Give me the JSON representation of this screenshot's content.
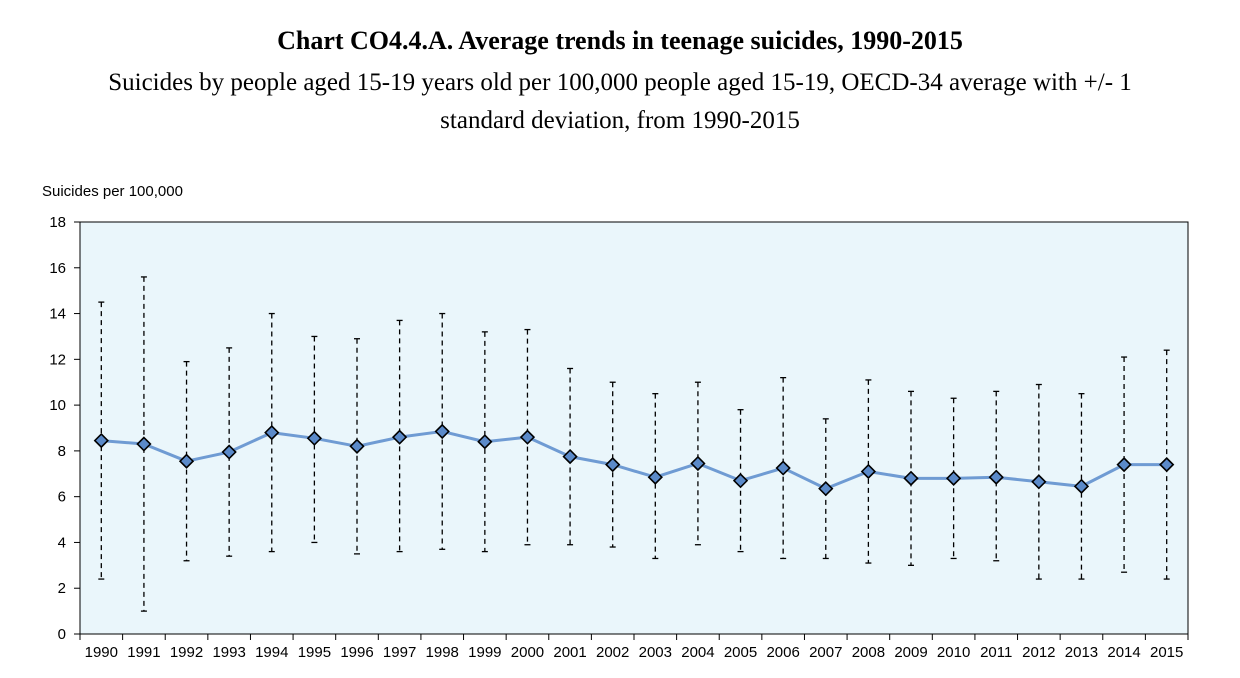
{
  "header": {
    "title": "Chart CO4.4.A. Average trends in teenage suicides, 1990-2015",
    "subtitle_line1": "Suicides by people aged 15-19 years old per 100,000 people aged 15-19, OECD-34 average with +/- 1",
    "subtitle_line2": "standard deviation, from 1990-2015"
  },
  "colors": {
    "plot_background": "#eaf6fb",
    "line": "#6f9bd3",
    "marker_fill": "#5b8ac9",
    "marker_stroke": "#000000",
    "error_bar": "#000000",
    "axis": "#000000"
  },
  "chart_data": {
    "type": "line",
    "title": "Chart CO4.4.A. Average trends in teenage suicides, 1990-2015",
    "ylabel": "Suicides per 100,000",
    "xlabel": "",
    "ylim": [
      0,
      18
    ],
    "yticks": [
      0,
      2,
      4,
      6,
      8,
      10,
      12,
      14,
      16,
      18
    ],
    "grid": false,
    "categories": [
      "1990",
      "1991",
      "1992",
      "1993",
      "1994",
      "1995",
      "1996",
      "1997",
      "1998",
      "1999",
      "2000",
      "2001",
      "2002",
      "2003",
      "2004",
      "2005",
      "2006",
      "2007",
      "2008",
      "2009",
      "2010",
      "2011",
      "2012",
      "2013",
      "2014",
      "2015"
    ],
    "series": [
      {
        "name": "OECD-34 average",
        "values": [
          8.45,
          8.3,
          7.55,
          7.95,
          8.8,
          8.55,
          8.2,
          8.6,
          8.85,
          8.4,
          8.6,
          7.75,
          7.4,
          6.85,
          7.45,
          6.7,
          7.25,
          6.35,
          7.1,
          6.8,
          6.8,
          6.85,
          6.65,
          6.45,
          7.4,
          7.4
        ]
      }
    ],
    "error_bars": {
      "name": "+/- 1 standard deviation",
      "upper": [
        14.5,
        15.6,
        11.9,
        12.5,
        14.0,
        13.0,
        12.9,
        13.7,
        14.0,
        13.2,
        13.3,
        11.6,
        11.0,
        10.5,
        11.0,
        9.8,
        11.2,
        9.4,
        11.1,
        10.6,
        10.3,
        10.6,
        10.9,
        10.5,
        12.1,
        12.4
      ],
      "lower": [
        2.4,
        1.0,
        3.2,
        3.4,
        3.6,
        4.0,
        3.5,
        3.6,
        3.7,
        3.6,
        3.9,
        3.9,
        3.8,
        3.3,
        3.9,
        3.6,
        3.3,
        3.3,
        3.1,
        3.0,
        3.3,
        3.2,
        2.4,
        2.4,
        2.7,
        2.4
      ]
    }
  }
}
